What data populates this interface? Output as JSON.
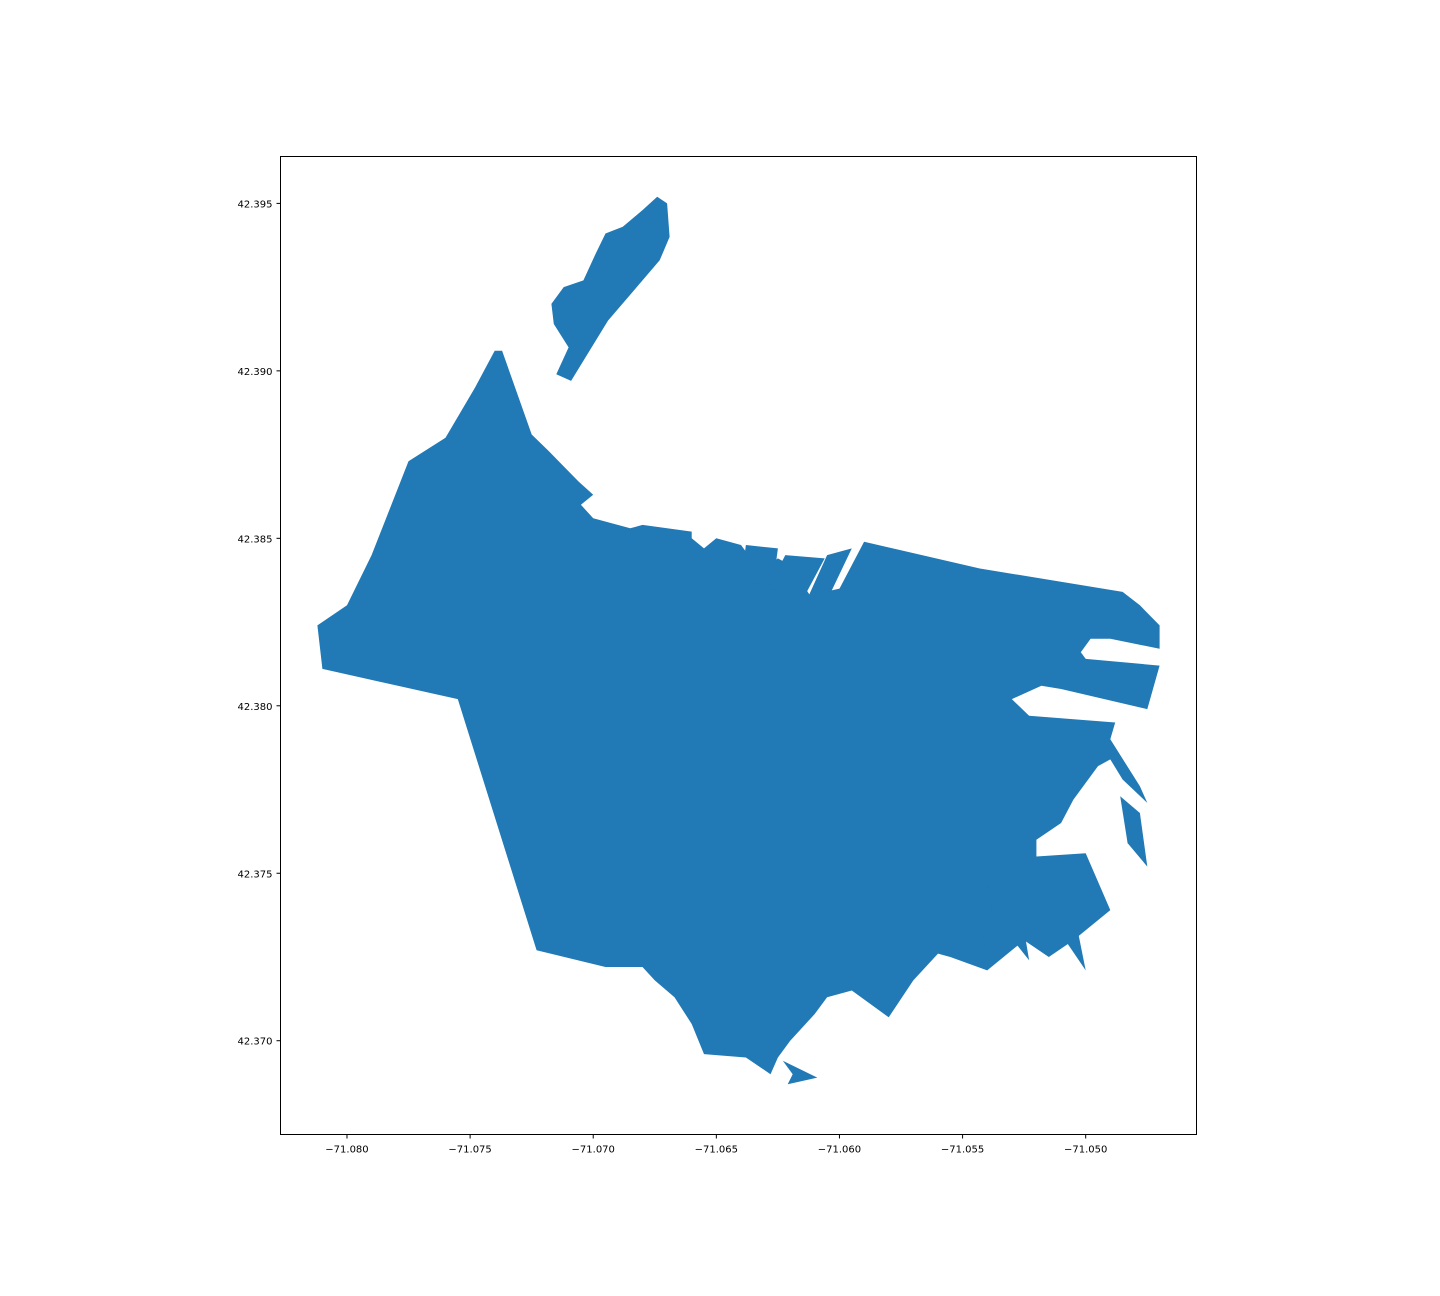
{
  "colors": {
    "fill": "#2179b5",
    "background": "#ffffff",
    "axes": "#000000"
  },
  "chart_data": {
    "type": "map",
    "xlim": [
      -71.0827,
      -71.0455
    ],
    "ylim": [
      42.3672,
      42.3964
    ],
    "x_ticks": [
      {
        "value": -71.08,
        "label": "−71.080"
      },
      {
        "value": -71.075,
        "label": "−71.075"
      },
      {
        "value": -71.07,
        "label": "−71.070"
      },
      {
        "value": -71.065,
        "label": "−71.065"
      },
      {
        "value": -71.06,
        "label": "−71.060"
      },
      {
        "value": -71.055,
        "label": "−71.055"
      },
      {
        "value": -71.05,
        "label": "−71.050"
      }
    ],
    "y_ticks": [
      {
        "value": 42.37,
        "label": "42.370"
      },
      {
        "value": 42.375,
        "label": "42.375"
      },
      {
        "value": 42.38,
        "label": "42.380"
      },
      {
        "value": 42.385,
        "label": "42.385"
      },
      {
        "value": 42.39,
        "label": "42.390"
      },
      {
        "value": 42.395,
        "label": "42.395"
      }
    ],
    "polygons": [
      {
        "name": "island",
        "coords": [
          [
            -71.0674,
            42.3952
          ],
          [
            -71.067,
            42.395
          ],
          [
            -71.0669,
            42.394
          ],
          [
            -71.0673,
            42.3933
          ],
          [
            -71.0694,
            42.3915
          ],
          [
            -71.0709,
            42.3897
          ],
          [
            -71.0715,
            42.3899
          ],
          [
            -71.071,
            42.3907
          ],
          [
            -71.0716,
            42.3914
          ],
          [
            -71.0717,
            42.392
          ],
          [
            -71.0712,
            42.3925
          ],
          [
            -71.0704,
            42.3927
          ],
          [
            -71.0699,
            42.3935
          ],
          [
            -71.0695,
            42.3941
          ],
          [
            -71.0688,
            42.3943
          ],
          [
            -71.068,
            42.3948
          ]
        ]
      },
      {
        "name": "mainland",
        "coords": [
          [
            -71.074,
            42.3906
          ],
          [
            -71.0737,
            42.3906
          ],
          [
            -71.0725,
            42.3881
          ],
          [
            -71.0718,
            42.3876
          ],
          [
            -71.0706,
            42.3867
          ],
          [
            -71.07,
            42.3863
          ],
          [
            -71.0705,
            42.386
          ],
          [
            -71.07,
            42.3856
          ],
          [
            -71.0685,
            42.3853
          ],
          [
            -71.068,
            42.3854
          ],
          [
            -71.066,
            42.3852
          ],
          [
            -71.066,
            42.385
          ],
          [
            -71.0655,
            42.3847
          ],
          [
            -71.065,
            42.385
          ],
          [
            -71.064,
            42.3848
          ],
          [
            -71.0632,
            42.384
          ],
          [
            -71.0625,
            42.3844
          ],
          [
            -71.062,
            42.3842
          ],
          [
            -71.0612,
            42.3833
          ],
          [
            -71.06,
            42.3835
          ],
          [
            -71.059,
            42.3849
          ],
          [
            -71.0543,
            42.3841
          ],
          [
            -71.0485,
            42.3834
          ],
          [
            -71.0478,
            42.383
          ],
          [
            -71.047,
            42.3824
          ],
          [
            -71.047,
            42.3817
          ],
          [
            -71.049,
            42.382
          ],
          [
            -71.0498,
            42.382
          ],
          [
            -71.0502,
            42.3816
          ],
          [
            -71.05,
            42.3814
          ],
          [
            -71.047,
            42.3812
          ],
          [
            -71.0475,
            42.3799
          ],
          [
            -71.051,
            42.3805
          ],
          [
            -71.0518,
            42.3806
          ],
          [
            -71.053,
            42.3802
          ],
          [
            -71.0523,
            42.3797
          ],
          [
            -71.0488,
            42.3795
          ],
          [
            -71.049,
            42.379
          ],
          [
            -71.0478,
            42.3776
          ],
          [
            -71.0475,
            42.3771
          ],
          [
            -71.0485,
            42.3778
          ],
          [
            -71.049,
            42.3784
          ],
          [
            -71.0495,
            42.3782
          ],
          [
            -71.0505,
            42.3772
          ],
          [
            -71.051,
            42.3765
          ],
          [
            -71.052,
            42.376
          ],
          [
            -71.052,
            42.3755
          ],
          [
            -71.05,
            42.3756
          ],
          [
            -71.049,
            42.3739
          ],
          [
            -71.0505,
            42.373
          ],
          [
            -71.0515,
            42.3725
          ],
          [
            -71.0525,
            42.373
          ],
          [
            -71.054,
            42.3721
          ],
          [
            -71.0555,
            42.3725
          ],
          [
            -71.056,
            42.3726
          ],
          [
            -71.057,
            42.3718
          ],
          [
            -71.058,
            42.3707
          ],
          [
            -71.0595,
            42.3715
          ],
          [
            -71.0605,
            42.3713
          ],
          [
            -71.061,
            42.3708
          ],
          [
            -71.062,
            42.37
          ],
          [
            -71.0625,
            42.3695
          ],
          [
            -71.0628,
            42.369
          ],
          [
            -71.0638,
            42.3695
          ],
          [
            -71.0655,
            42.3696
          ],
          [
            -71.066,
            42.3705
          ],
          [
            -71.0667,
            42.3713
          ],
          [
            -71.0675,
            42.3718
          ],
          [
            -71.068,
            42.3722
          ],
          [
            -71.0695,
            42.3722
          ],
          [
            -71.0723,
            42.3727
          ],
          [
            -71.0755,
            42.3802
          ],
          [
            -71.081,
            42.3811
          ],
          [
            -71.0812,
            42.3824
          ],
          [
            -71.08,
            42.383
          ],
          [
            -71.079,
            42.3845
          ],
          [
            -71.0775,
            42.3873
          ],
          [
            -71.076,
            42.388
          ],
          [
            -71.0748,
            42.3895
          ]
        ]
      },
      {
        "name": "pier-1",
        "coords": [
          [
            -71.0638,
            42.3848
          ],
          [
            -71.0625,
            42.3847
          ],
          [
            -71.0627,
            42.3836
          ],
          [
            -71.064,
            42.3837
          ]
        ]
      },
      {
        "name": "pier-2",
        "coords": [
          [
            -71.0622,
            42.3845
          ],
          [
            -71.0606,
            42.3844
          ],
          [
            -71.0614,
            42.3833
          ],
          [
            -71.0629,
            42.3835
          ]
        ]
      },
      {
        "name": "pier-3",
        "coords": [
          [
            -71.0605,
            42.3845
          ],
          [
            -71.0595,
            42.3847
          ],
          [
            -71.0606,
            42.383
          ],
          [
            -71.0613,
            42.3832
          ]
        ]
      },
      {
        "name": "pier-4",
        "coords": [
          [
            -71.0553,
            42.3753
          ],
          [
            -71.0543,
            42.3739
          ],
          [
            -71.0541,
            42.3728
          ],
          [
            -71.0559,
            42.3744
          ]
        ]
      },
      {
        "name": "pier-5",
        "coords": [
          [
            -71.054,
            42.3747
          ],
          [
            -71.0525,
            42.3733
          ],
          [
            -71.0523,
            42.3724
          ],
          [
            -71.0538,
            42.3738
          ]
        ]
      },
      {
        "name": "pier-6",
        "coords": [
          [
            -71.0515,
            42.3745
          ],
          [
            -71.0503,
            42.3732
          ],
          [
            -71.05,
            42.3721
          ],
          [
            -71.0512,
            42.3734
          ]
        ]
      },
      {
        "name": "pier-7",
        "coords": [
          [
            -71.0486,
            42.3773
          ],
          [
            -71.0478,
            42.3768
          ],
          [
            -71.0475,
            42.3752
          ],
          [
            -71.0483,
            42.3759
          ]
        ]
      },
      {
        "name": "jetty",
        "coords": [
          [
            -71.0623,
            42.3694
          ],
          [
            -71.0609,
            42.3689
          ],
          [
            -71.0621,
            42.3687
          ],
          [
            -71.0619,
            42.369
          ]
        ]
      }
    ]
  }
}
